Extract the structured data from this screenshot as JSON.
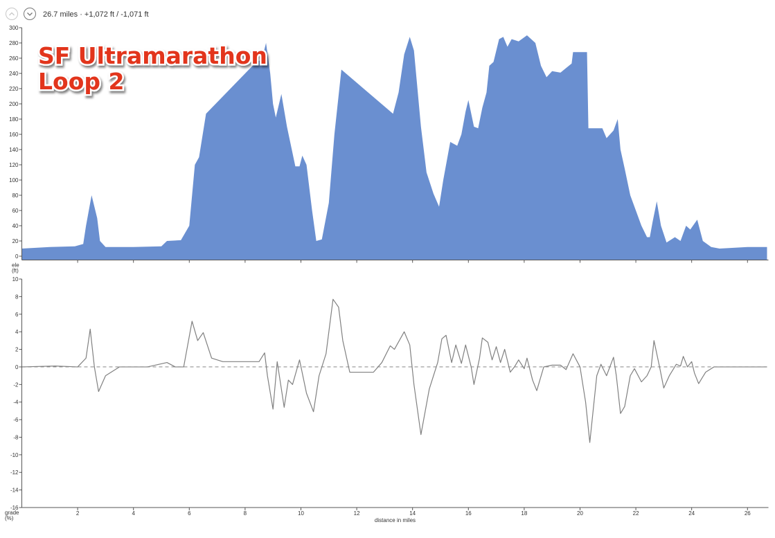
{
  "header": {
    "summary": "26.7 miles · +1,072 ft / -1,071 ft"
  },
  "annotation": [
    "SF Ultramarathon",
    "Loop 2"
  ],
  "chart_data": [
    {
      "type": "area",
      "y_label": [
        "ele",
        "(ft)"
      ],
      "color": "#6a8fd0",
      "xlim": [
        0,
        26.75
      ],
      "ylim": [
        -5,
        300
      ],
      "xticks": [
        2,
        4,
        6,
        8,
        10,
        12,
        14,
        16,
        18,
        20,
        22,
        24,
        26
      ],
      "yticks": [
        0,
        20,
        40,
        60,
        80,
        100,
        120,
        140,
        160,
        180,
        200,
        220,
        240,
        260,
        280,
        300
      ],
      "x": [
        0,
        1,
        1.9,
        2.2,
        2.3,
        2.5,
        2.7,
        2.8,
        3,
        4,
        5,
        5.2,
        5.7,
        6,
        6.2,
        6.35,
        6.6,
        8.4,
        8.6,
        8.75,
        8.9,
        9,
        9.1,
        9.3,
        9.5,
        9.8,
        9.95,
        10.05,
        10.2,
        10.4,
        10.55,
        10.75,
        11,
        11.2,
        11.45,
        13.3,
        13.5,
        13.7,
        13.9,
        14.05,
        14.3,
        14.5,
        14.75,
        14.95,
        15.1,
        15.35,
        15.6,
        15.75,
        15.9,
        16,
        16.2,
        16.35,
        16.5,
        16.65,
        16.75,
        16.9,
        17.1,
        17.25,
        17.4,
        17.55,
        17.8,
        18.1,
        18.4,
        18.6,
        18.8,
        19,
        19.3,
        19.5,
        19.7,
        19.75,
        20.25,
        20.3,
        20.8,
        20.95,
        21.2,
        21.35,
        21.45,
        21.6,
        21.8,
        22,
        22.2,
        22.4,
        22.5,
        22.6,
        22.75,
        22.9,
        23.1,
        23.4,
        23.6,
        23.8,
        23.95,
        24.2,
        24.4,
        24.7,
        25,
        26,
        26.7
      ],
      "values": [
        10,
        12,
        13,
        16,
        40,
        80,
        50,
        20,
        12,
        12,
        13,
        20,
        21,
        40,
        120,
        130,
        187,
        255,
        258,
        280,
        240,
        200,
        182,
        213,
        170,
        118,
        118,
        132,
        120,
        60,
        20,
        22,
        70,
        160,
        245,
        187,
        215,
        265,
        288,
        270,
        170,
        110,
        82,
        65,
        100,
        150,
        145,
        160,
        190,
        205,
        170,
        168,
        195,
        215,
        250,
        255,
        285,
        288,
        275,
        285,
        282,
        290,
        280,
        250,
        235,
        243,
        241,
        247,
        253,
        268,
        268,
        168,
        168,
        155,
        165,
        180,
        140,
        115,
        80,
        60,
        40,
        25,
        25,
        45,
        72,
        40,
        18,
        25,
        20,
        40,
        35,
        48,
        20,
        12,
        10,
        12,
        12
      ]
    },
    {
      "type": "line",
      "y_label": [
        "grade",
        "(%)"
      ],
      "x_label": "distance in miles",
      "color": "#808080",
      "zero_line": true,
      "xlim": [
        0,
        26.75
      ],
      "ylim": [
        -16,
        10
      ],
      "xticks": [
        2,
        4,
        6,
        8,
        10,
        12,
        14,
        16,
        18,
        20,
        22,
        24,
        26
      ],
      "yticks": [
        -16,
        -14,
        -12,
        -10,
        -8,
        -6,
        -4,
        -2,
        0,
        2,
        4,
        6,
        8,
        10
      ],
      "x": [
        0,
        1.2,
        2,
        2.3,
        2.45,
        2.6,
        2.75,
        3,
        3.5,
        4.5,
        5.2,
        5.5,
        5.8,
        6.1,
        6.3,
        6.5,
        6.8,
        7.2,
        8.5,
        8.7,
        8.8,
        9,
        9.15,
        9.4,
        9.55,
        9.7,
        9.95,
        10.2,
        10.45,
        10.65,
        10.9,
        11.15,
        11.35,
        11.5,
        11.75,
        12.6,
        12.9,
        13.2,
        13.35,
        13.7,
        13.9,
        14.05,
        14.3,
        14.6,
        14.9,
        15.05,
        15.2,
        15.4,
        15.55,
        15.75,
        15.9,
        16.1,
        16.2,
        16.4,
        16.5,
        16.7,
        16.85,
        17,
        17.15,
        17.3,
        17.5,
        17.65,
        17.8,
        18,
        18.1,
        18.3,
        18.45,
        18.7,
        19,
        19.3,
        19.5,
        19.75,
        20,
        20.2,
        20.35,
        20.6,
        20.75,
        20.95,
        21.2,
        21.3,
        21.45,
        21.6,
        21.8,
        21.95,
        22.2,
        22.4,
        22.55,
        22.65,
        22.85,
        23,
        23.2,
        23.45,
        23.6,
        23.7,
        23.85,
        24,
        24.1,
        24.25,
        24.5,
        24.8,
        25.5,
        26.7
      ],
      "values": [
        0,
        0.1,
        0,
        1,
        4.3,
        0,
        -2.8,
        -1,
        0,
        0,
        0.5,
        0,
        0,
        5.2,
        3,
        3.9,
        1,
        0.6,
        0.6,
        1.6,
        -1,
        -4.8,
        0.6,
        -4.6,
        -1.5,
        -2,
        0.8,
        -3,
        -5.1,
        -1,
        1.5,
        7.7,
        6.8,
        3,
        -0.6,
        -0.6,
        0.5,
        2.4,
        2,
        4,
        2.5,
        -2,
        -7.7,
        -2.5,
        0.5,
        3.2,
        3.6,
        0.5,
        2.5,
        0.4,
        2.5,
        0,
        -2,
        1,
        3.3,
        2.8,
        0.8,
        2.3,
        0.5,
        2,
        -0.6,
        0,
        0.8,
        -0.2,
        1,
        -1.5,
        -2.7,
        0,
        0.2,
        0.2,
        -0.3,
        1.5,
        0,
        -4,
        -8.6,
        -1,
        0.3,
        -1,
        1.1,
        -1,
        -5.3,
        -4.5,
        -1,
        -0.2,
        -1.7,
        -1,
        0,
        3,
        0,
        -2.4,
        -1,
        0.3,
        0.1,
        1.2,
        0,
        0.6,
        -0.7,
        -1.9,
        -0.6,
        0,
        0,
        0
      ]
    }
  ]
}
